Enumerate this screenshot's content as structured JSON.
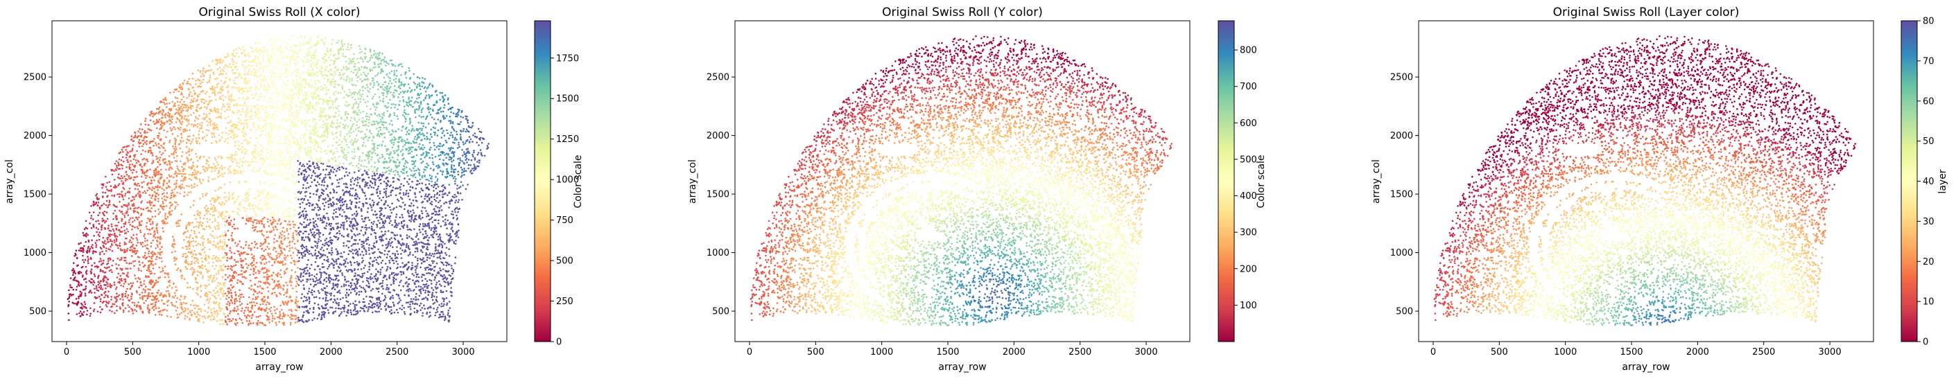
{
  "chart_data": [
    {
      "type": "scatter",
      "title": "Original Swiss Roll (X color)",
      "xlabel": "array_row",
      "ylabel": "array_col",
      "xlim": [
        -110,
        3330
      ],
      "ylim": [
        240,
        2980
      ],
      "xticks": [
        0,
        500,
        1000,
        1500,
        2000,
        2500,
        3000
      ],
      "yticks": [
        500,
        1000,
        1500,
        2000,
        2500
      ],
      "colormap": "Spectral",
      "color_by": "x",
      "colorbar": {
        "label": "Color scale",
        "min": 0,
        "max": 1980,
        "ticks": [
          0,
          250,
          500,
          750,
          1000,
          1250,
          1500,
          1750
        ]
      }
    },
    {
      "type": "scatter",
      "title": "Original Swiss Roll (Y color)",
      "xlabel": "array_row",
      "ylabel": "array_col",
      "xlim": [
        -110,
        3330
      ],
      "ylim": [
        240,
        2980
      ],
      "xticks": [
        0,
        500,
        1000,
        1500,
        2000,
        2500,
        3000
      ],
      "yticks": [
        500,
        1000,
        1500,
        2000,
        2500
      ],
      "colormap": "Spectral",
      "color_by": "y",
      "colorbar": {
        "label": "Color scale",
        "min": 0,
        "max": 880,
        "ticks": [
          100,
          200,
          300,
          400,
          500,
          600,
          700,
          800
        ]
      }
    },
    {
      "type": "scatter",
      "title": "Original Swiss Roll (Layer color)",
      "xlabel": "array_row",
      "ylabel": "array_col",
      "xlim": [
        -110,
        3330
      ],
      "ylim": [
        240,
        2980
      ],
      "xticks": [
        0,
        500,
        1000,
        1500,
        2000,
        2500,
        3000
      ],
      "yticks": [
        500,
        1000,
        1500,
        2000,
        2500
      ],
      "colormap": "Spectral",
      "color_by": "layer",
      "colorbar": {
        "label": "layer",
        "min": 0,
        "max": 80,
        "ticks": [
          0,
          10,
          20,
          30,
          40,
          50,
          60,
          70,
          80
        ]
      }
    }
  ],
  "colors": {
    "spectral": [
      "#9e0142",
      "#d53e4f",
      "#f46d43",
      "#fdae61",
      "#fee08b",
      "#ffffbf",
      "#e6f598",
      "#abdda4",
      "#66c2a5",
      "#3288bd",
      "#5e4fa2"
    ]
  }
}
